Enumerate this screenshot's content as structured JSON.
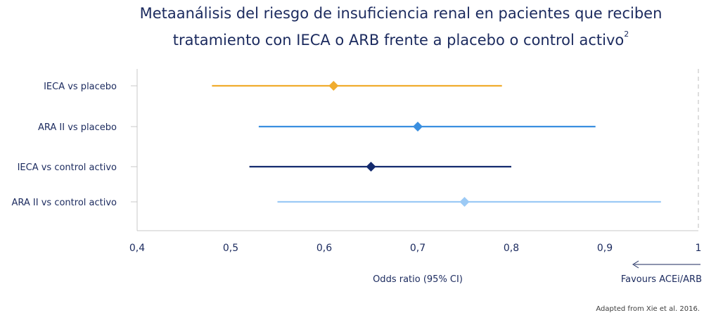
{
  "title": {
    "line1": "Metaanálisis del riesgo de insuficiencia renal en pacientes que reciben",
    "line2": "tratamiento con IECA o ARB frente a placebo o control activo",
    "superscript": "2"
  },
  "source_note": "Adapted from Xie et al. 2016.",
  "chart_data": {
    "type": "forest",
    "title": "Metaanálisis del riesgo de insuficiencia renal en pacientes que reciben tratamiento con IECA o ARB frente a placebo o control activo",
    "xlabel": "Odds ratio (95% CI)",
    "xlim": [
      0.4,
      1.0
    ],
    "reference_line": 1.0,
    "x_ticks": [
      0.4,
      0.5,
      0.6,
      0.7,
      0.8,
      0.9,
      1.0
    ],
    "x_tick_labels": [
      "0,4",
      "0,5",
      "0,6",
      "0,7",
      "0,8",
      "0,9",
      "1"
    ],
    "direction_annotation": "Favours ACEi/ARB",
    "rows": [
      {
        "label": "IECA vs placebo",
        "estimate": 0.61,
        "lower": 0.48,
        "upper": 0.79,
        "color": "#f0ac2e"
      },
      {
        "label": "ARA II vs placebo",
        "estimate": 0.7,
        "lower": 0.53,
        "upper": 0.89,
        "color": "#3a8fe0"
      },
      {
        "label": "IECA vs control activo",
        "estimate": 0.65,
        "lower": 0.52,
        "upper": 0.8,
        "color": "#132a6e"
      },
      {
        "label": "ARA II vs control activo",
        "estimate": 0.75,
        "lower": 0.55,
        "upper": 0.96,
        "color": "#9ccaf5"
      }
    ]
  }
}
